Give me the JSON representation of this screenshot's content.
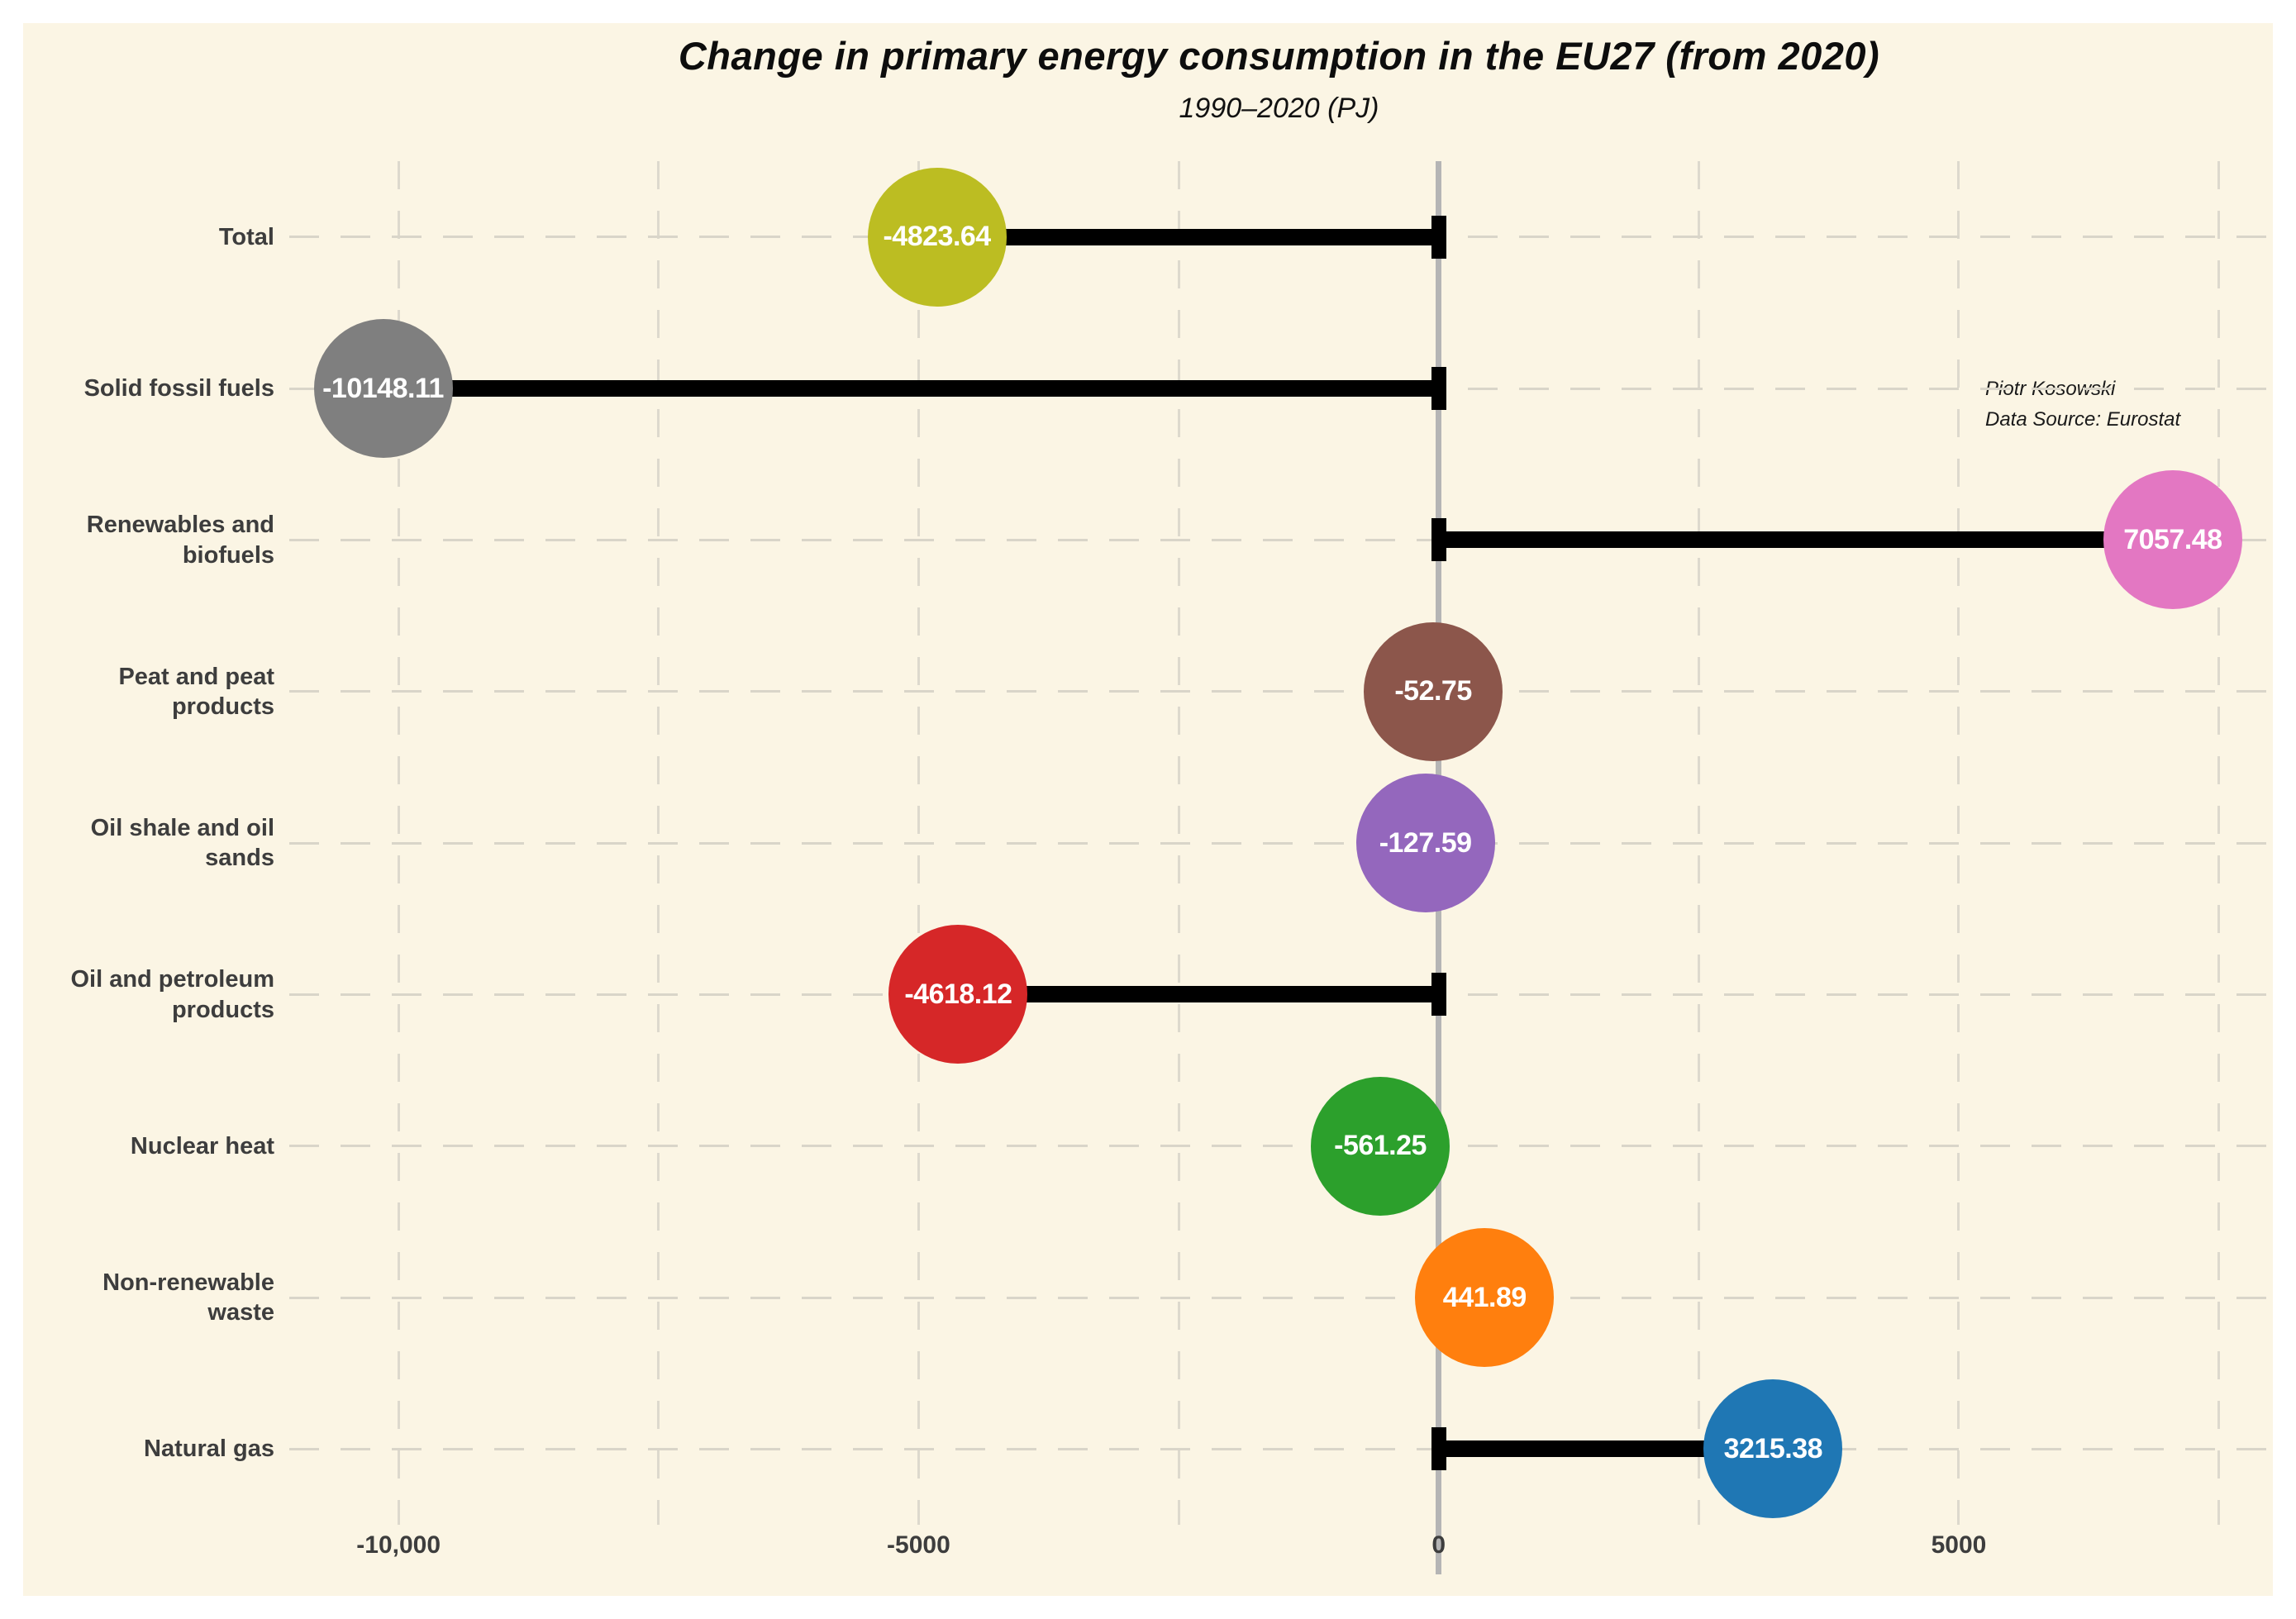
{
  "figure": {
    "background_color": "#fbf5e4",
    "outer_background_color": "#ffffff"
  },
  "chart_data": {
    "type": "bar",
    "variant": "horizontal-lollipop",
    "title": "Change in primary energy consumption in the EU27 (from 2020)",
    "subtitle": "1990–2020 (PJ)",
    "xlabel": "",
    "ylabel": "",
    "annotation": {
      "line1": "Piotr Kosowski",
      "line2": "Data Source: Eurostat"
    },
    "categories": [
      "Total",
      "Solid fossil fuels",
      "Renewables and\nbiofuels",
      "Peat and peat\nproducts",
      "Oil shale and oil\nsands",
      "Oil and petroleum\nproducts",
      "Nuclear heat",
      "Non-renewable waste",
      "Natural gas"
    ],
    "values": [
      -4823.64,
      -10148.11,
      7057.48,
      -52.75,
      -127.59,
      -4618.12,
      -561.25,
      441.89,
      3215.38
    ],
    "value_labels": [
      "-4823.64",
      "-10148.11",
      "7057.48",
      "-52.75",
      "-127.59",
      "-4618.12",
      "-561.25",
      "441.89",
      "3215.38"
    ],
    "point_colors": [
      "#bcbd22",
      "#7f7f7f",
      "#e377c2",
      "#8c564b",
      "#9467bd",
      "#d62728",
      "#2ca02c",
      "#ff7f0e",
      "#1f77b4"
    ],
    "value_text_color": "#ffffff",
    "stem_color": "#000000",
    "zero_line_color": "#b5b5b5",
    "grid": "dashed",
    "xlim": [
      -11050,
      7980
    ],
    "x_ticks": [
      {
        "value": -10000,
        "label": "-10,000"
      },
      {
        "value": -5000,
        "label": "-5000"
      },
      {
        "value": 0,
        "label": "0"
      },
      {
        "value": 5000,
        "label": "5000"
      }
    ],
    "x_gridline_values": [
      -10000,
      -7500,
      -5000,
      -2500,
      2500,
      5000,
      7500
    ],
    "legend": "none"
  }
}
